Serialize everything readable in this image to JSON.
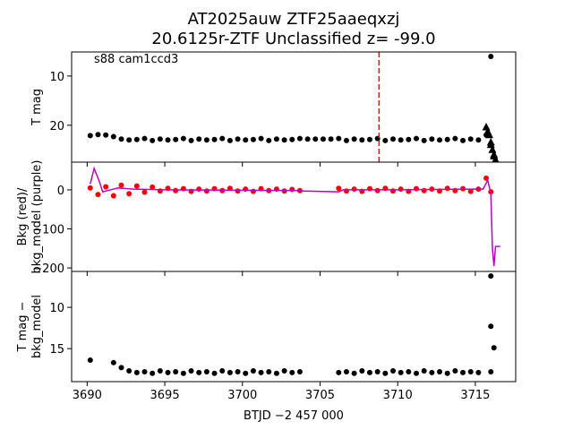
{
  "chart_data": [
    {
      "type": "scatter",
      "title": "AT2025auw  ZTF25aaeqxzj",
      "subtitle": "20.6125r-ZTF Unclassified z= -99.0",
      "annotation": "s88 cam1ccd3",
      "ylabel": [
        "T mag"
      ],
      "xlim": [
        3689,
        3717.6
      ],
      "xticks": [
        3690,
        3695,
        3700,
        3705,
        3710,
        3715
      ],
      "ylim": [
        5.1,
        27.5
      ],
      "y_inverted": true,
      "yticks": [
        10,
        20
      ],
      "vline": {
        "x": 3708.8,
        "color": "#ff0000",
        "style": "dashed"
      },
      "series": [
        {
          "marker": "circle",
          "color": "#000000",
          "x": [
            3690.2,
            3690.7,
            3691.2,
            3691.7,
            3692.2,
            3692.7,
            3693.2,
            3693.7,
            3694.2,
            3694.7,
            3695.2,
            3695.7,
            3696.2,
            3696.7,
            3697.2,
            3697.7,
            3698.2,
            3698.7,
            3699.2,
            3699.7,
            3700.2,
            3700.7,
            3701.2,
            3701.7,
            3702.2,
            3702.7,
            3703.2,
            3703.7,
            3704.2,
            3704.7,
            3705.2,
            3705.7,
            3706.2,
            3706.7,
            3707.2,
            3707.7,
            3708.2,
            3708.7,
            3709.2,
            3709.7,
            3710.2,
            3710.7,
            3711.2,
            3711.7,
            3712.2,
            3712.7,
            3713.2,
            3713.7,
            3714.2,
            3714.7,
            3715.2,
            3715.7,
            3716.0
          ],
          "values": [
            22.1,
            21.9,
            22.0,
            22.3,
            22.8,
            23.0,
            22.9,
            22.7,
            23.1,
            22.8,
            23.0,
            22.9,
            22.7,
            23.1,
            22.8,
            23.0,
            22.9,
            22.7,
            23.1,
            22.8,
            23.0,
            22.9,
            22.7,
            23.1,
            22.8,
            23.0,
            22.9,
            22.7,
            22.8,
            22.8,
            22.8,
            22.8,
            22.7,
            23.1,
            22.8,
            23.0,
            22.9,
            22.7,
            23.1,
            22.8,
            23.0,
            22.9,
            22.7,
            23.1,
            22.8,
            23.0,
            22.9,
            22.7,
            23.1,
            22.8,
            23.0,
            22.0,
            6.0
          ]
        },
        {
          "marker": "triangle",
          "color": "#000000",
          "x": [
            3715.7,
            3715.8,
            3715.9,
            3716.0,
            3716.1,
            3716.2,
            3716.3,
            3716.0,
            3716.2
          ],
          "values": [
            20.4,
            21.3,
            22.0,
            23.5,
            25.0,
            26.0,
            27.0,
            24.0,
            26.3
          ]
        }
      ]
    },
    {
      "type": "scatter",
      "ylabel": [
        "Bkg (red)/",
        "bkg_model (purple)"
      ],
      "xlim": [
        3689,
        3717.6
      ],
      "xticks": [
        3690,
        3695,
        3700,
        3705,
        3710,
        3715
      ],
      "ylim": [
        -209,
        71
      ],
      "y_inverted": false,
      "yticks": [
        {
          "value": -200,
          "label": "−200"
        },
        {
          "value": -100,
          "label": "−100"
        },
        0
      ],
      "series": [
        {
          "type": "scatter",
          "marker": "circle",
          "color": "#ff0000",
          "x": [
            3690.2,
            3690.7,
            3691.2,
            3691.7,
            3692.2,
            3692.7,
            3693.2,
            3693.7,
            3694.2,
            3694.7,
            3695.2,
            3695.7,
            3696.2,
            3696.7,
            3697.2,
            3697.7,
            3698.2,
            3698.7,
            3699.2,
            3699.7,
            3700.2,
            3700.7,
            3701.2,
            3701.7,
            3702.2,
            3702.7,
            3703.2,
            3703.7,
            3706.2,
            3706.7,
            3707.2,
            3707.7,
            3708.2,
            3708.7,
            3709.2,
            3709.7,
            3710.2,
            3710.7,
            3711.2,
            3711.7,
            3712.2,
            3712.7,
            3713.2,
            3713.7,
            3714.2,
            3714.7,
            3715.2,
            3715.7,
            3716.0
          ],
          "values": [
            5,
            -12,
            8,
            -15,
            12,
            -10,
            10,
            -6,
            7,
            -3,
            4,
            -2,
            3,
            -4,
            2,
            -3,
            3,
            -2,
            4,
            -3,
            2,
            -4,
            3,
            -2,
            2,
            -3,
            1,
            -2,
            4,
            -3,
            2,
            -4,
            3,
            -2,
            4,
            -3,
            2,
            -4,
            3,
            -2,
            2,
            -3,
            4,
            -2,
            3,
            -4,
            2,
            30,
            -5
          ]
        },
        {
          "type": "line",
          "color": "#bf00bf",
          "x": [
            3690.2,
            3690.45,
            3690.6,
            3690.8,
            3691.0,
            3691.5,
            3692.0,
            3693.0,
            3695.0,
            3700.0,
            3703.7,
            3704.0,
            3706.2,
            3706.5,
            3710.0,
            3715.0,
            3715.5,
            3715.8,
            3716.0,
            3716.1,
            3716.2,
            3716.3,
            3716.6
          ],
          "values": [
            15,
            55,
            40,
            20,
            -5,
            0,
            5,
            2,
            0,
            -1,
            -2,
            -3,
            -5,
            0,
            0,
            2,
            2,
            25,
            -10,
            -150,
            -195,
            -145,
            -145
          ]
        }
      ]
    },
    {
      "type": "scatter",
      "ylabel": [
        "T mag −",
        "bkg_model"
      ],
      "xlabel": "BTJD −2 457 000",
      "xlim": [
        3689,
        3717.6
      ],
      "xticks": [
        3690,
        3695,
        3700,
        3705,
        3710,
        3715
      ],
      "ylim": [
        5.65,
        19.0
      ],
      "y_inverted": true,
      "yticks": [
        10,
        15
      ],
      "series": [
        {
          "marker": "circle",
          "color": "#000000",
          "x": [
            3690.2,
            3691.7,
            3692.2,
            3692.7,
            3693.2,
            3693.7,
            3694.2,
            3694.7,
            3695.2,
            3695.7,
            3696.2,
            3696.7,
            3697.2,
            3697.7,
            3698.2,
            3698.7,
            3699.2,
            3699.7,
            3700.2,
            3700.7,
            3701.2,
            3701.7,
            3702.2,
            3702.7,
            3703.2,
            3703.7,
            3706.2,
            3706.7,
            3707.2,
            3707.7,
            3708.2,
            3708.7,
            3709.2,
            3709.7,
            3710.2,
            3710.7,
            3711.2,
            3711.7,
            3712.2,
            3712.7,
            3713.2,
            3713.7,
            3714.2,
            3714.7,
            3715.2,
            3716.0,
            3716.0,
            3716.2,
            3716.0
          ],
          "values": [
            16.4,
            16.7,
            17.3,
            17.7,
            17.9,
            17.8,
            18.0,
            17.7,
            17.9,
            17.8,
            18.0,
            17.7,
            17.9,
            17.8,
            18.0,
            17.7,
            17.9,
            17.8,
            18.0,
            17.7,
            17.9,
            17.8,
            18.0,
            17.7,
            17.9,
            17.8,
            17.9,
            17.8,
            18.0,
            17.7,
            17.9,
            17.8,
            18.0,
            17.7,
            17.9,
            17.8,
            18.0,
            17.7,
            17.9,
            17.8,
            18.0,
            17.7,
            17.9,
            17.8,
            17.9,
            6.2,
            12.3,
            14.9,
            17.8
          ]
        }
      ]
    }
  ]
}
